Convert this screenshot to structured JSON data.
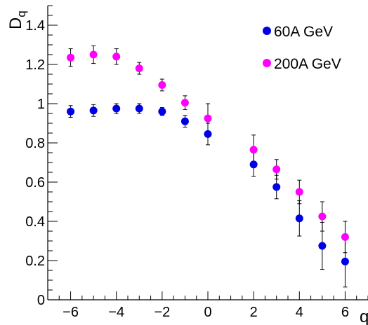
{
  "chart_data": {
    "type": "scatter",
    "xlabel": "q",
    "ylabel": "D",
    "ylabel_sub": "q",
    "xlim": [
      -7,
      7
    ],
    "ylim": [
      0,
      1.5
    ],
    "x_ticks": [
      -6,
      -4,
      -2,
      0,
      2,
      4,
      6
    ],
    "x_tick_labels": [
      "−6",
      "−4",
      "−2",
      "0",
      "2",
      "4",
      "6"
    ],
    "y_ticks": [
      0,
      0.2,
      0.4,
      0.6,
      0.8,
      1.0,
      1.2,
      1.4
    ],
    "y_tick_labels": [
      "0",
      "0.2",
      "0.4",
      "0.6",
      "0.8",
      "1",
      "1.2",
      "1.4"
    ],
    "grid": false,
    "legend_position": "top-right",
    "series": [
      {
        "name": "60A GeV",
        "color": "#0000e6",
        "x": [
          -6,
          -5,
          -4,
          -3,
          -2,
          -1,
          0,
          2,
          3,
          4,
          5,
          6
        ],
        "y": [
          0.96,
          0.965,
          0.975,
          0.975,
          0.96,
          0.91,
          0.845,
          0.69,
          0.575,
          0.415,
          0.275,
          0.195
        ],
        "yerr": [
          0.03,
          0.03,
          0.025,
          0.025,
          0.02,
          0.03,
          0.055,
          0.06,
          0.06,
          0.09,
          0.12,
          0.13
        ]
      },
      {
        "name": "200A GeV",
        "color": "#ff00ff",
        "x": [
          -6,
          -5,
          -4,
          -3,
          -2,
          -1,
          0,
          2,
          3,
          4,
          5,
          6
        ],
        "y": [
          1.235,
          1.25,
          1.24,
          1.18,
          1.095,
          1.005,
          0.925,
          0.765,
          0.665,
          0.55,
          0.425,
          0.32
        ],
        "yerr": [
          0.045,
          0.045,
          0.04,
          0.03,
          0.03,
          0.035,
          0.075,
          0.075,
          0.05,
          0.06,
          0.075,
          0.08
        ]
      }
    ]
  }
}
